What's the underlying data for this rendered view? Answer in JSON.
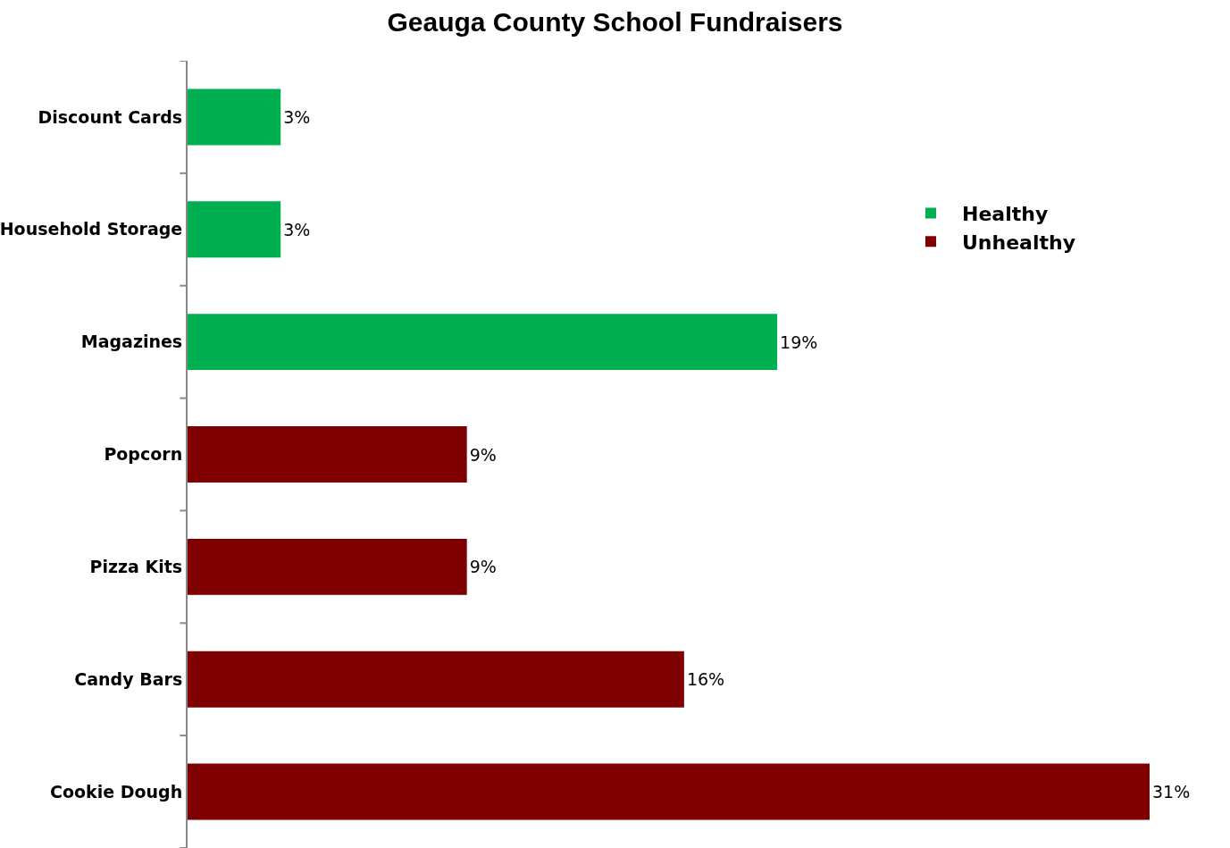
{
  "chart_data": {
    "type": "bar",
    "orientation": "horizontal",
    "title": "Geauga County School Fundraisers",
    "categories": [
      "Discount Cards",
      "Household Storage",
      "Magazines",
      "Popcorn",
      "Pizza Kits",
      "Candy Bars",
      "Cookie Dough"
    ],
    "series": [
      {
        "name": "Healthy",
        "color": "#00b050",
        "values": [
          3,
          3,
          19,
          null,
          null,
          null,
          null
        ],
        "value_labels": [
          "3%",
          "3%",
          "19%",
          null,
          null,
          null,
          null
        ]
      },
      {
        "name": "Unhealthy",
        "color": "#7f0000",
        "values": [
          null,
          null,
          null,
          9,
          9,
          16,
          31
        ],
        "value_labels": [
          null,
          null,
          null,
          "9%",
          "9%",
          "16%",
          "31%"
        ]
      }
    ],
    "grid": false,
    "legend": "top right",
    "tick_labels": "y"
  }
}
